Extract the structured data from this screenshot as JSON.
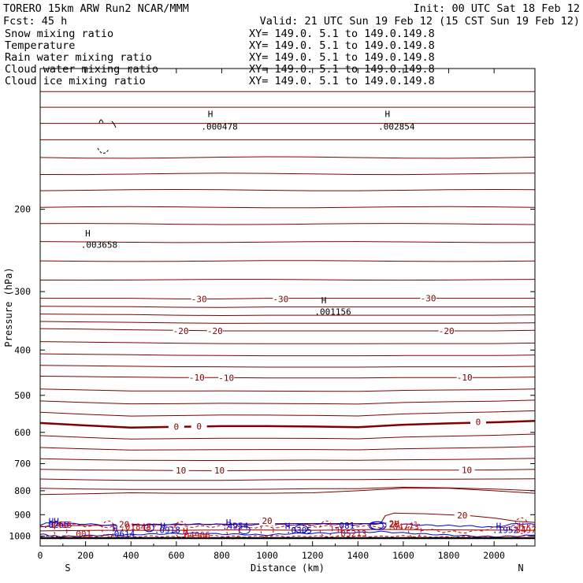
{
  "header": {
    "model": "TORERO   15km ARW   Run2   NCAR/MMM",
    "init": "Init: 00 UTC Sat 18 Feb 12",
    "fcst": "Fcst:   45 h",
    "valid": "Valid: 21 UTC Sun 19 Feb 12 (15 CST Sun 19 Feb 12)"
  },
  "legend": [
    {
      "label": "Snow mixing ratio",
      "xy": "XY= 149.0.  5.1 to 149.0.149.8",
      "color": "#000000",
      "xy_color": "#cc0000"
    },
    {
      "label": "Temperature",
      "xy": "XY= 149.0.  5.1 to 149.0.149.8",
      "color": "#cc0000",
      "xy_color": "#cc0000"
    },
    {
      "label": "Rain water mixing ratio",
      "xy": "XY= 149.0.  5.1 to 149.0.149.8",
      "color": "#cc0000",
      "xy_color": "#cc0000"
    },
    {
      "label": "Cloud water mixing ratio",
      "xy": "XY= 149.0.  5.1 to 149.0.149.8",
      "color": "#0000cc",
      "xy_color": "#0000cc"
    },
    {
      "label": "Cloud ice mixing ratio",
      "xy": "XY= 149.0.  5.1 to 149.0.149.8",
      "color": "#000000",
      "xy_color": "#000000"
    }
  ],
  "chart_data": {
    "type": "contour",
    "xlabel": "Distance (km)",
    "ylabel": "Pressure (hPa)",
    "xlim": [
      0,
      2180
    ],
    "ylim": [
      1050,
      100
    ],
    "y_scale": "log",
    "xticks": [
      0,
      200,
      400,
      600,
      800,
      1000,
      1200,
      1400,
      1600,
      1800,
      2000
    ],
    "yticks": [
      200,
      300,
      400,
      500,
      600,
      700,
      800,
      900,
      1000
    ],
    "endpoint_labels": {
      "left": "S",
      "right": "N"
    },
    "colors": {
      "temperature": "#800000",
      "rain": "#cc0000",
      "cloud_water": "#0000cc",
      "ice": "#000000",
      "ground": "#000000"
    },
    "temperature_levels": [
      {
        "value": -30,
        "pressure": [
          310,
          310,
          310,
          311,
          311,
          310,
          310,
          310,
          310,
          310,
          310,
          310
        ]
      },
      {
        "value": -20,
        "pressure": [
          360,
          361,
          362,
          363,
          364,
          364,
          364,
          364,
          364,
          364,
          364,
          363
        ]
      },
      {
        "value": -10,
        "pressure": [
          455,
          456,
          457,
          458,
          458,
          459,
          459,
          459,
          458,
          458,
          458,
          457
        ]
      },
      {
        "value": 0,
        "pressure": [
          573,
          580,
          586,
          584,
          582,
          582,
          583,
          585,
          578,
          574,
          571,
          567
        ]
      },
      {
        "value": 10,
        "pressure": [
          720,
          722,
          723,
          724,
          725,
          724,
          723,
          723,
          723,
          723,
          722,
          720
        ]
      }
    ],
    "temperature_x": [
      0,
      200,
      400,
      600,
      800,
      1000,
      1200,
      1400,
      1600,
      1800,
      2000,
      2180
    ],
    "contour_labels": [
      {
        "text": "-30",
        "x": 700,
        "p": 311,
        "color": "#800000"
      },
      {
        "text": "-30",
        "x": 1060,
        "p": 311,
        "color": "#800000"
      },
      {
        "text": "-30",
        "x": 1710,
        "p": 310,
        "color": "#800000"
      },
      {
        "text": "-20",
        "x": 620,
        "p": 364,
        "color": "#800000"
      },
      {
        "text": "-20",
        "x": 770,
        "p": 364,
        "color": "#800000"
      },
      {
        "text": "-20",
        "x": 1790,
        "p": 364,
        "color": "#800000"
      },
      {
        "text": "-10",
        "x": 690,
        "p": 458,
        "color": "#800000"
      },
      {
        "text": "-10",
        "x": 820,
        "p": 459,
        "color": "#800000"
      },
      {
        "text": "-10",
        "x": 1870,
        "p": 458,
        "color": "#800000"
      },
      {
        "text": "0",
        "x": 600,
        "p": 583,
        "color": "#800000"
      },
      {
        "text": "0",
        "x": 700,
        "p": 582,
        "color": "#800000"
      },
      {
        "text": "0",
        "x": 1930,
        "p": 570,
        "color": "#800000"
      },
      {
        "text": "10",
        "x": 620,
        "p": 724,
        "color": "#800000"
      },
      {
        "text": "10",
        "x": 790,
        "p": 724,
        "color": "#800000"
      },
      {
        "text": "10",
        "x": 1880,
        "p": 722,
        "color": "#800000"
      },
      {
        "text": "20",
        "x": 1860,
        "p": 902,
        "color": "#800000"
      },
      {
        "text": "20",
        "x": 1000,
        "p": 928,
        "color": "#800000"
      },
      {
        "text": "20",
        "x": 370,
        "p": 943,
        "color": "#800000"
      },
      {
        "text": "20",
        "x": 1560,
        "p": 943,
        "color": "#800000"
      }
    ],
    "extrema_labels": [
      {
        "text": "H",
        "x": 750,
        "p": 125,
        "color": "#000000"
      },
      {
        "text": ".000478",
        "x": 790,
        "p": 133,
        "color": "#000000"
      },
      {
        "text": "H",
        "x": 1530,
        "p": 125,
        "color": "#000000"
      },
      {
        "text": ".002854",
        "x": 1570,
        "p": 133,
        "color": "#000000"
      },
      {
        "text": "H",
        "x": 210,
        "p": 225,
        "color": "#000000"
      },
      {
        "text": ".003658",
        "x": 260,
        "p": 238,
        "color": "#000000"
      },
      {
        "text": "H",
        "x": 1250,
        "p": 313,
        "color": "#000000"
      },
      {
        "text": ".001156",
        "x": 1290,
        "p": 331,
        "color": "#000000"
      },
      {
        "text": "HH",
        "x": 60,
        "p": 929,
        "color": "#0000cc"
      },
      {
        "text": ".0265",
        "x": 70,
        "p": 946,
        "color": "#0000cc"
      },
      {
        "text": "2415",
        "x": 95,
        "p": 946,
        "color": "#cc0000"
      },
      {
        "text": ".001",
        "x": 180,
        "p": 988,
        "color": "#cc0000"
      },
      {
        "text": "H",
        "x": 330,
        "p": 963,
        "color": "#0000cc"
      },
      {
        "text": ".01848",
        "x": 420,
        "p": 955,
        "color": "#cc0000"
      },
      {
        "text": ".0614",
        "x": 360,
        "p": 988,
        "color": "#0000cc"
      },
      {
        "text": "H",
        "x": 540,
        "p": 952,
        "color": "#0000cc"
      },
      {
        "text": ".0918",
        "x": 560,
        "p": 970,
        "color": "#0000cc"
      },
      {
        "text": "H",
        "x": 640,
        "p": 975,
        "color": "#cc0000"
      },
      {
        "text": ".04906",
        "x": 680,
        "p": 994,
        "color": "#cc0000"
      },
      {
        "text": "H",
        "x": 830,
        "p": 935,
        "color": "#0000cc"
      },
      {
        "text": ".4954",
        "x": 860,
        "p": 952,
        "color": "#0000cc"
      },
      {
        "text": "H",
        "x": 1090,
        "p": 952,
        "color": "#0000cc"
      },
      {
        "text": ".0305",
        "x": 1140,
        "p": 972,
        "color": "#0000cc"
      },
      {
        "text": ".081",
        "x": 1340,
        "p": 949,
        "color": "#0000cc"
      },
      {
        "text": "H",
        "x": 1320,
        "p": 970,
        "color": "#cc0000"
      },
      {
        "text": ".05213",
        "x": 1370,
        "p": 987,
        "color": "#cc0000"
      },
      {
        "text": "2H",
        "x": 1560,
        "p": 940,
        "color": "#cc0000"
      },
      {
        "text": ".04773",
        "x": 1600,
        "p": 955,
        "color": "#cc0000"
      },
      {
        "text": "H",
        "x": 2020,
        "p": 952,
        "color": "#0000cc"
      },
      {
        "text": "H",
        "x": 2120,
        "p": 952,
        "color": "#cc0000"
      },
      {
        "text": ".1952",
        "x": 2050,
        "p": 970,
        "color": "#0000cc"
      },
      {
        "text": "5497",
        "x": 2140,
        "p": 970,
        "color": "#cc0000"
      }
    ],
    "warm_boundary": {
      "value": 20,
      "x": [
        0,
        100,
        300,
        500,
        700,
        900,
        1100,
        1300,
        1500,
        1520,
        1560,
        1700,
        1900,
        2000,
        2100,
        2180
      ],
      "p": [
        955,
        950,
        948,
        946,
        944,
        942,
        940,
        940,
        940,
        905,
        893,
        896,
        905,
        915,
        930,
        935
      ]
    },
    "cloud_layer": {
      "top_x": [
        0,
        50,
        100,
        200,
        300,
        400,
        500,
        600,
        700,
        800,
        900,
        1000,
        1100,
        1200,
        1300,
        1400,
        1500,
        1600,
        1700,
        1800,
        1900,
        2000,
        2100,
        2180
      ],
      "top_p": [
        945,
        935,
        940,
        942,
        948,
        946,
        945,
        944,
        943,
        944,
        945,
        946,
        945,
        944,
        943,
        945,
        940,
        944,
        948,
        950,
        952,
        958,
        940,
        945
      ],
      "bot_p": [
        990,
        998,
        1003,
        998,
        995,
        993,
        990,
        988,
        987,
        990,
        992,
        995,
        988,
        986,
        985,
        983,
        978,
        985,
        990,
        995,
        1000,
        1003,
        1000,
        995
      ]
    },
    "rain_x": [
      0,
      100,
      200,
      300,
      400,
      500,
      600,
      700,
      800,
      900,
      1000,
      1100,
      1200,
      1300,
      1400,
      1500,
      1600,
      1700,
      1800,
      1900,
      2000,
      2100,
      2180
    ],
    "rain_top_p": [
      950,
      945,
      950,
      955,
      950,
      953,
      950,
      955,
      952,
      957,
      955,
      958,
      952,
      955,
      950,
      955,
      960,
      970,
      980,
      980,
      960,
      950,
      952
    ],
    "rain_bot_p": [
      1003,
      1000,
      1004,
      998,
      1003,
      1000,
      1004,
      998,
      1000,
      1003,
      999,
      1002,
      1000,
      1003,
      1000,
      1002,
      1000,
      1003,
      1004,
      1003,
      1004,
      1001,
      1000
    ],
    "ground_pressure": 1010
  }
}
